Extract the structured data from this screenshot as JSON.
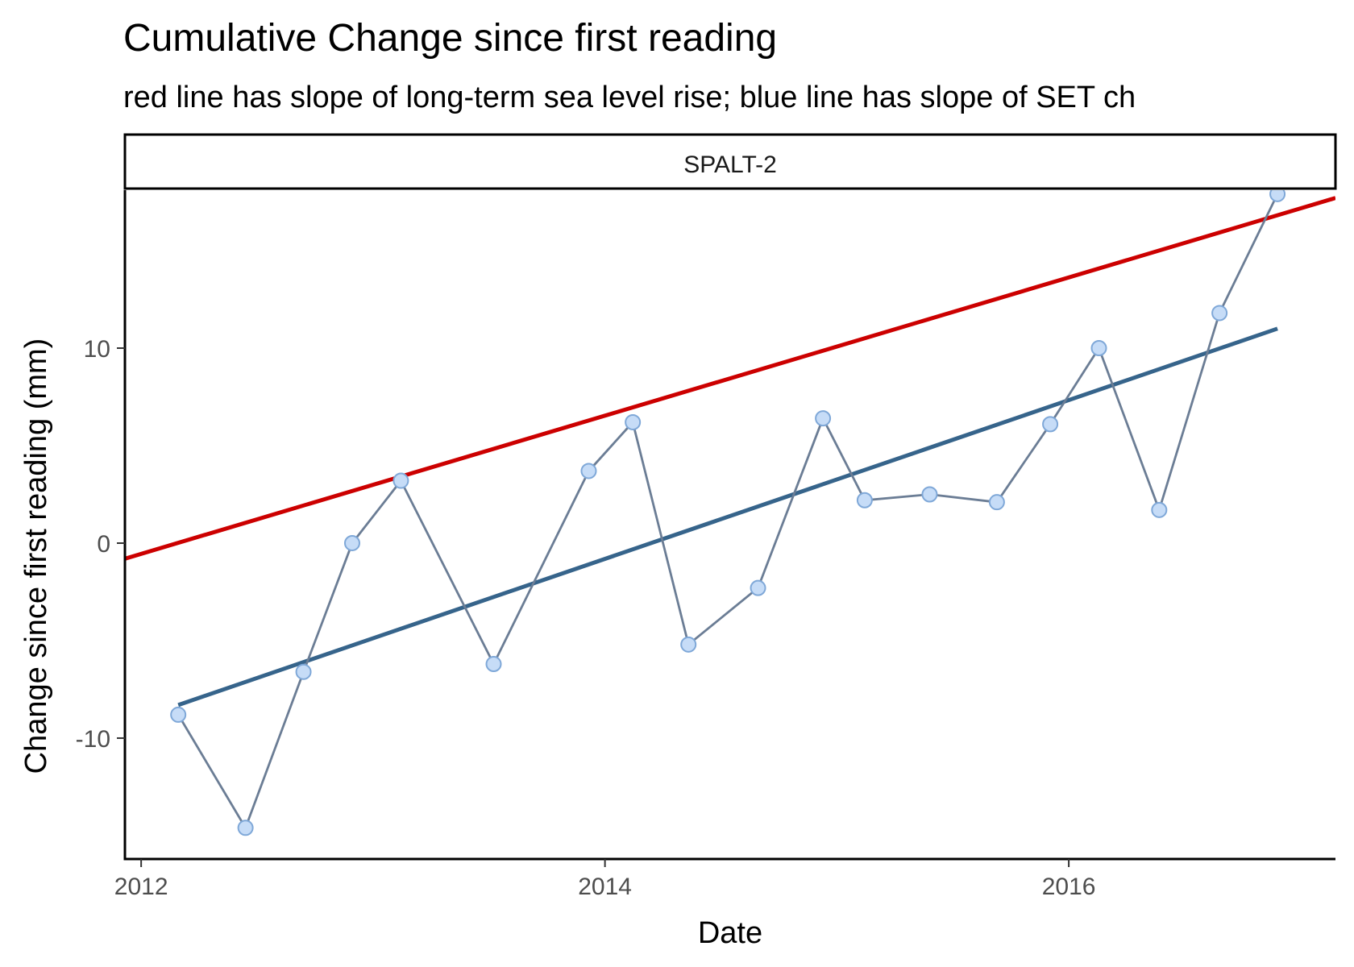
{
  "chart_data": {
    "type": "line",
    "title": "Cumulative Change since first reading",
    "subtitle": "red line has slope of long-term sea level rise; blue line has slope of SET ch",
    "facet_label": "SPALT-2",
    "xlabel": "Date",
    "ylabel": "Change since first reading (mm)",
    "xlim": [
      2011.93,
      2017.15
    ],
    "ylim": [
      -16.2,
      18.1
    ],
    "x_ticks": [
      2012,
      2014,
      2016
    ],
    "x_tick_labels": [
      "2012",
      "2014",
      "2016"
    ],
    "y_ticks": [
      -10,
      0,
      10
    ],
    "y_tick_labels": [
      "-10",
      "0",
      "10"
    ],
    "grid": false,
    "legend": "none",
    "series": [
      {
        "x": [
          2012.16,
          2012.45,
          2012.7,
          2012.91,
          2013.12,
          2013.52,
          2013.93,
          2014.12,
          2014.36,
          2014.66,
          2014.94,
          2015.12,
          2015.4,
          2015.69,
          2015.92,
          2016.13,
          2016.39,
          2016.65,
          2016.9
        ],
        "y": [
          -8.8,
          -14.6,
          -6.6,
          0.0,
          3.2,
          -6.2,
          3.7,
          6.2,
          -5.2,
          -2.3,
          6.4,
          2.2,
          2.5,
          2.1,
          6.1,
          10.0,
          1.7,
          11.8,
          17.9
        ],
        "color": "#6b7d95",
        "marker_fill": "#c6dcf7",
        "marker_edge": "#7fa8d8"
      }
    ],
    "reference_lines": [
      {
        "x": [
          2011.93,
          2017.15
        ],
        "y": [
          -0.8,
          17.7
        ],
        "color": "#cc0000"
      },
      {
        "x": [
          2012.16,
          2016.9
        ],
        "y": [
          -8.3,
          11.0
        ],
        "color": "#36648b"
      }
    ]
  }
}
